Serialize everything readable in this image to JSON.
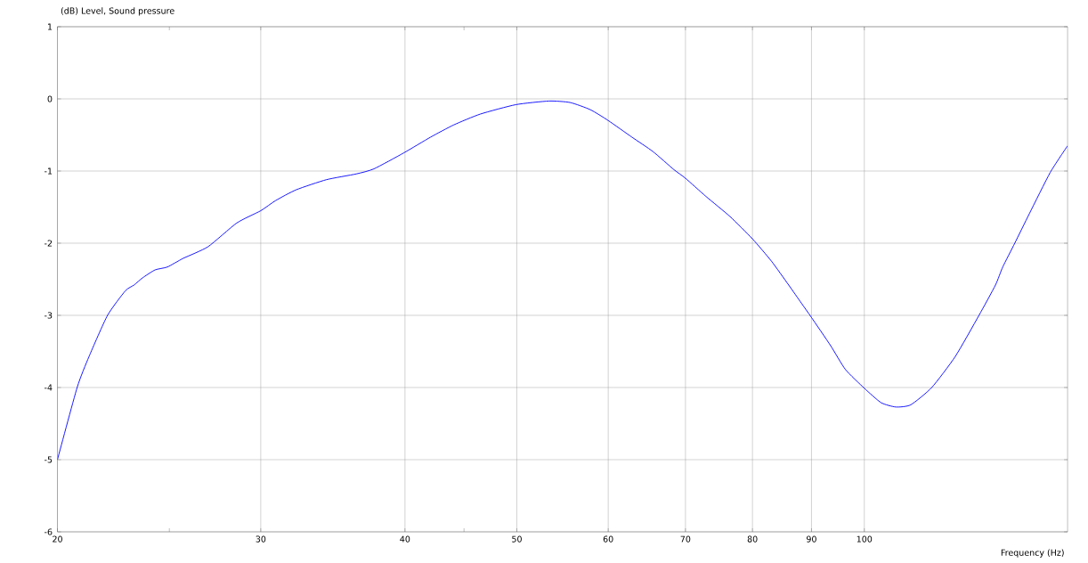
{
  "chart_data": {
    "type": "line",
    "xlabel": "Frequency (Hz)",
    "ylabel": "(dB) Level, Sound pressure",
    "x": [
      20.0,
      20.8,
      21.3,
      22.1,
      22.9,
      23.3,
      23.7,
      24.3,
      24.9,
      25.7,
      27.0,
      28.6,
      30.0,
      30.9,
      32.2,
      34.2,
      36.3,
      37.6,
      39.9,
      42.1,
      44.1,
      46.5,
      49.9,
      53.3,
      55.6,
      57.9,
      60.0,
      62.9,
      65.6,
      68.4,
      70.0,
      72.9,
      76.5,
      80.0,
      83.1,
      86.0,
      88.2,
      90.0,
      93.5,
      96.3,
      100.0,
      103.4,
      106.5,
      109.7,
      114.4,
      119.9,
      125.7,
      129.9,
      131.8,
      135.0,
      139.0,
      144.9,
      150.0
    ],
    "series": [
      {
        "color": "#0000ff",
        "values": [
          -5.0,
          -4.0,
          -3.57,
          -3.0,
          -2.66,
          -2.58,
          -2.48,
          -2.37,
          -2.33,
          -2.21,
          -2.05,
          -1.72,
          -1.55,
          -1.41,
          -1.26,
          -1.12,
          -1.04,
          -0.97,
          -0.75,
          -0.53,
          -0.36,
          -0.21,
          -0.08,
          -0.03,
          -0.05,
          -0.15,
          -0.3,
          -0.53,
          -0.73,
          -0.98,
          -1.1,
          -1.35,
          -1.63,
          -1.94,
          -2.25,
          -2.58,
          -2.83,
          -3.03,
          -3.42,
          -3.75,
          -4.01,
          -4.21,
          -4.27,
          -4.24,
          -4.0,
          -3.57,
          -3.0,
          -2.58,
          -2.33,
          -2.0,
          -1.59,
          -1.02,
          -0.65
        ]
      }
    ],
    "xlim": [
      20,
      150
    ],
    "ylim": [
      -6,
      1
    ],
    "xticks": [
      20,
      {
        "value": 25,
        "label": null
      },
      30,
      40,
      {
        "value": 45,
        "label": null
      },
      50,
      60,
      70,
      80,
      90,
      100
    ],
    "yticks": [
      -6,
      -5,
      -4,
      -3,
      -2,
      -1,
      0,
      1
    ],
    "log": "x",
    "grid": true,
    "marker": "none",
    "line_style": "solid"
  }
}
